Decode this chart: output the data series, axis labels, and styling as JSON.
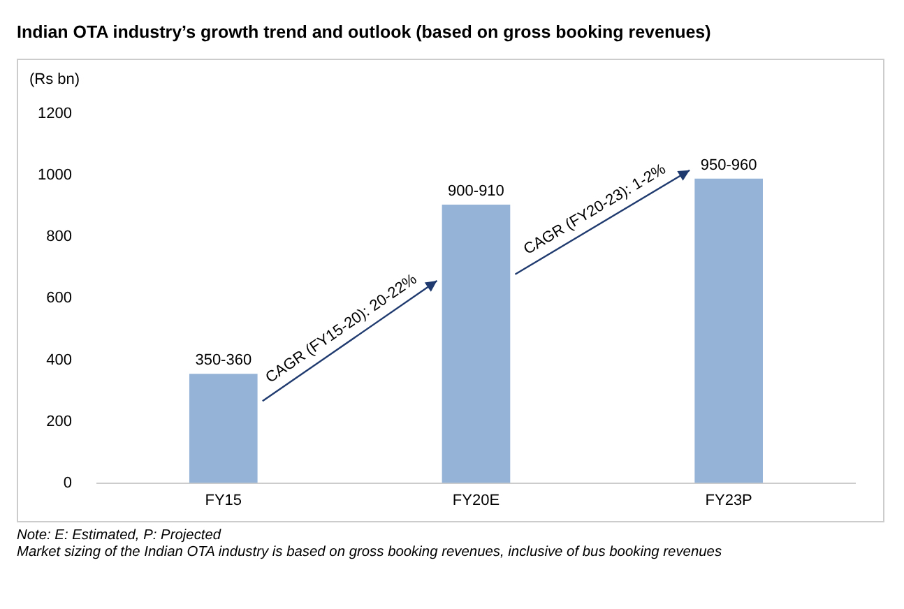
{
  "chart_data": {
    "type": "bar",
    "title": "Indian OTA industry’s growth trend and outlook (based on gross booking revenues)",
    "ylabel": "(Rs bn)",
    "categories": [
      "FY15",
      "FY20E",
      "FY23P"
    ],
    "values": [
      355,
      905,
      990
    ],
    "color": "#95b3d7",
    "value_labels": [
      "350-360",
      "900-910",
      "950-960"
    ],
    "ylim": [
      0,
      1200
    ],
    "yticks": [
      0,
      200,
      400,
      600,
      800,
      1000,
      1200
    ],
    "grid": false,
    "legend": false,
    "annotations": [
      "CAGR (FY15-20): 20-22%",
      "CAGR (FY20-23): 1-2%",
      "Note: E: Estimated, P: Projected",
      "Market sizing of the Indian OTA industry is based on gross booking revenues, inclusive of bus booking revenues"
    ]
  }
}
